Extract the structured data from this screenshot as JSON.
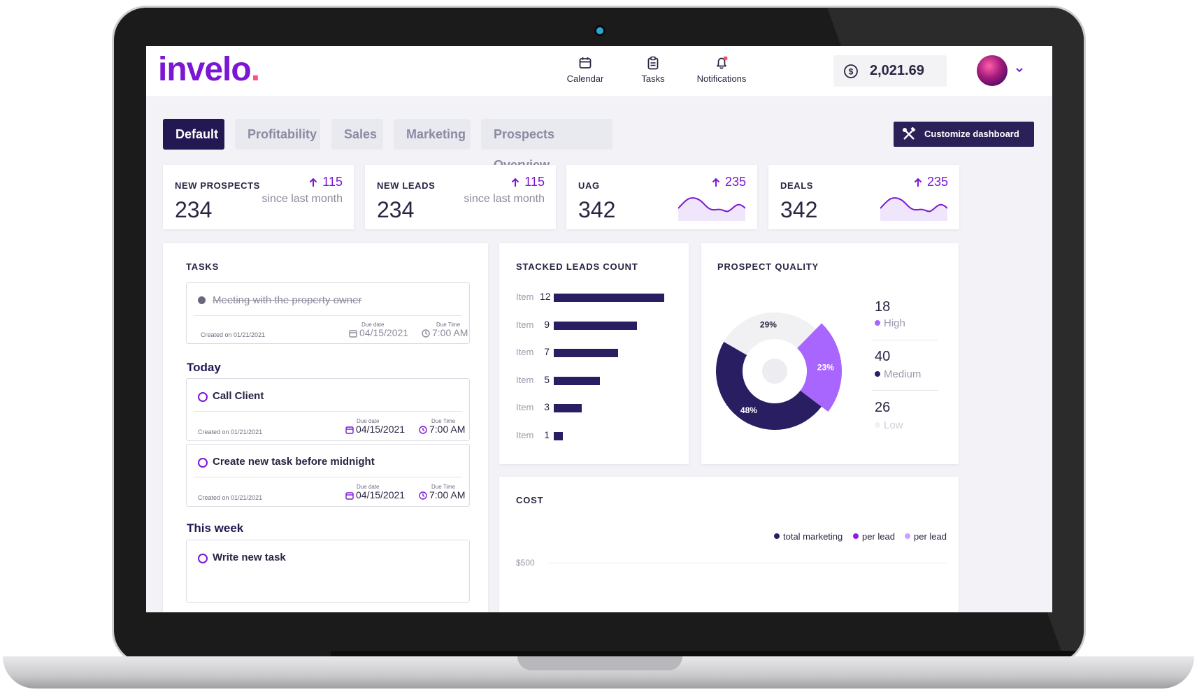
{
  "brand": {
    "name": "invelo",
    "dot": "."
  },
  "header": {
    "nav": [
      {
        "label": "Calendar",
        "icon": "calendar-icon"
      },
      {
        "label": "Tasks",
        "icon": "clipboard-icon"
      },
      {
        "label": "Notifications",
        "icon": "bell-icon"
      }
    ],
    "balance": "2,021.69"
  },
  "tabs": [
    "Default",
    "Profitability",
    "Sales",
    "Marketing",
    "Prospects Overview"
  ],
  "active_tab": "Default",
  "customize_label": "Customize dashboard",
  "stats": [
    {
      "label": "NEW PROSPECTS",
      "value": "234",
      "delta": "115",
      "note": "since last month"
    },
    {
      "label": "NEW LEADS",
      "value": "234",
      "delta": "115",
      "note": "since last month"
    },
    {
      "label": "UAG",
      "value": "342",
      "delta": "235"
    },
    {
      "label": "DEALS",
      "value": "342",
      "delta": "235"
    }
  ],
  "tasks_panel": {
    "title": "TASKS",
    "completed": {
      "title": "Meeting with the property owner",
      "created": "Created on 01/21/2021",
      "due_date_label": "Due date",
      "due_date": "04/15/2021",
      "due_time_label": "Due Time",
      "due_time": "7:00 AM"
    },
    "today_label": "Today",
    "today": [
      {
        "title": "Call Client",
        "created": "Created on 01/21/2021",
        "due_date_label": "Due date",
        "due_date": "04/15/2021",
        "due_time_label": "Due Time",
        "due_time": "7:00 AM"
      },
      {
        "title": "Create new task before midnight",
        "created": "Created on 01/21/2021",
        "due_date_label": "Due date",
        "due_date": "04/15/2021",
        "due_time_label": "Due Time",
        "due_time": "7:00 AM"
      }
    ],
    "week_label": "This week",
    "week": [
      {
        "title": "Write new task"
      }
    ]
  },
  "stacked_leads": {
    "title": "STACKED LEADS COUNT",
    "item_label": "Item",
    "values": [
      12,
      9,
      7,
      5,
      3,
      1
    ]
  },
  "prospect_quality": {
    "title": "PROSPECT QUALITY",
    "slices": [
      {
        "name": "High",
        "count": "18",
        "percent": 23,
        "color": "#a866ff"
      },
      {
        "name": "Medium",
        "count": "40",
        "percent": 48,
        "color": "#2a1e63"
      },
      {
        "name": "Low",
        "count": "26",
        "percent": 29,
        "color": "#f1f1f4"
      }
    ],
    "slice_labels": [
      "29%",
      "23%",
      "48%"
    ]
  },
  "cost": {
    "title": "COST",
    "legend": [
      {
        "label": "total marketing",
        "color": "#2a1e63"
      },
      {
        "label": "per lead",
        "color": "#8e1cf0"
      },
      {
        "label": "per lead",
        "color": "#c9a2ff"
      }
    ],
    "y_tick": "$500"
  },
  "colors": {
    "accent": "#7b17d4",
    "navy": "#241852",
    "pink": "#ff4f7a"
  }
}
